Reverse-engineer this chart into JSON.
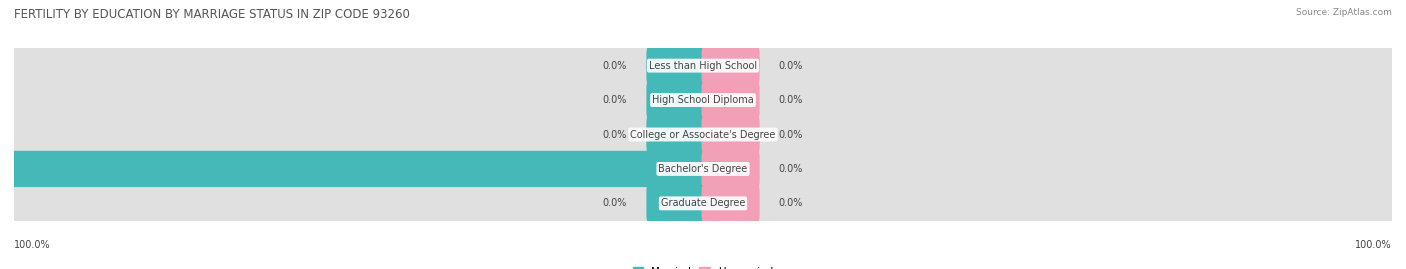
{
  "title": "FERTILITY BY EDUCATION BY MARRIAGE STATUS IN ZIP CODE 93260",
  "source": "Source: ZipAtlas.com",
  "categories": [
    "Less than High School",
    "High School Diploma",
    "College or Associate's Degree",
    "Bachelor's Degree",
    "Graduate Degree"
  ],
  "married_values": [
    0.0,
    0.0,
    0.0,
    100.0,
    0.0
  ],
  "unmarried_values": [
    0.0,
    0.0,
    0.0,
    0.0,
    0.0
  ],
  "married_color": "#45B8B8",
  "unmarried_color": "#F2A0B8",
  "bar_bg_color": "#E0E0E0",
  "row_bg_even": "#F0F0F0",
  "row_bg_odd": "#E8E8E8",
  "label_color": "#444444",
  "title_color": "#555555",
  "source_color": "#888888",
  "axis_max": 100.0,
  "stub_size": 8.0,
  "bar_height": 0.62,
  "fig_width": 14.06,
  "fig_height": 2.69,
  "title_fontsize": 8.5,
  "label_fontsize": 7.0,
  "value_fontsize": 7.0,
  "legend_fontsize": 7.5,
  "source_fontsize": 6.5
}
